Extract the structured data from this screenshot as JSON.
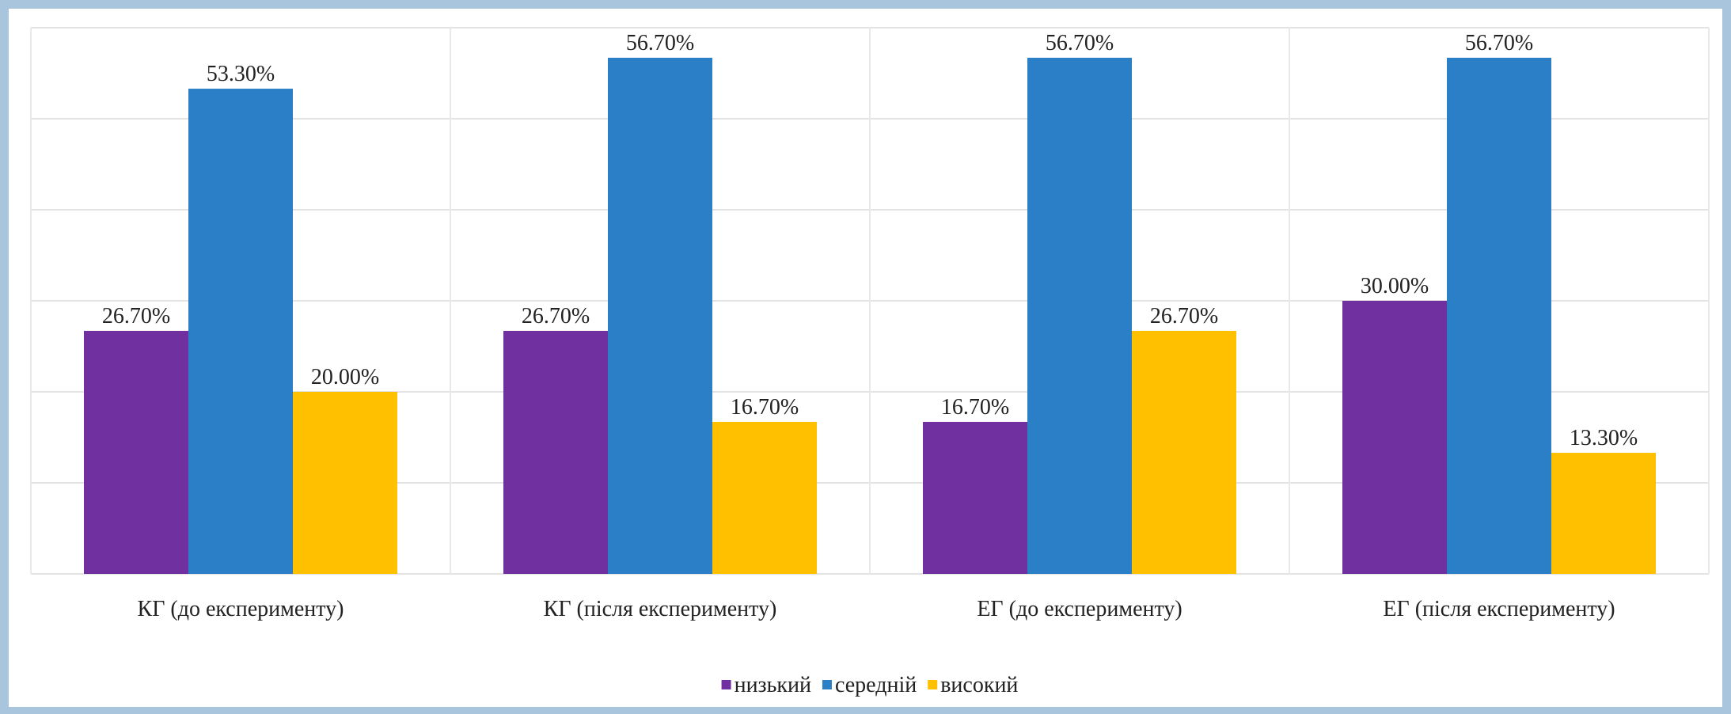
{
  "chart_data": {
    "type": "bar",
    "categories": [
      "КГ (до експерименту)",
      "КГ (після експерименту)",
      "ЕГ (до експерименту)",
      "ЕГ (після експерименту)"
    ],
    "series": [
      {
        "name": "низький",
        "color": "#7030a0",
        "values": [
          26.7,
          26.7,
          16.7,
          30.0
        ],
        "value_labels": [
          "26.70%",
          "26.70%",
          "16.70%",
          "30.00%"
        ]
      },
      {
        "name": "середній",
        "color": "#2a7fc6",
        "values": [
          53.3,
          56.7,
          56.7,
          56.7
        ],
        "value_labels": [
          "53.30%",
          "56.70%",
          "56.70%",
          "56.70%"
        ]
      },
      {
        "name": "високий",
        "color": "#ffc000",
        "values": [
          20.0,
          16.7,
          26.7,
          13.3
        ],
        "value_labels": [
          "20.00%",
          "16.70%",
          "26.70%",
          "13.30%"
        ]
      }
    ],
    "ylim": [
      0,
      60
    ],
    "yticks": [
      0,
      10,
      20,
      30,
      40,
      50,
      60
    ],
    "grid": true,
    "legend": "bottom"
  }
}
